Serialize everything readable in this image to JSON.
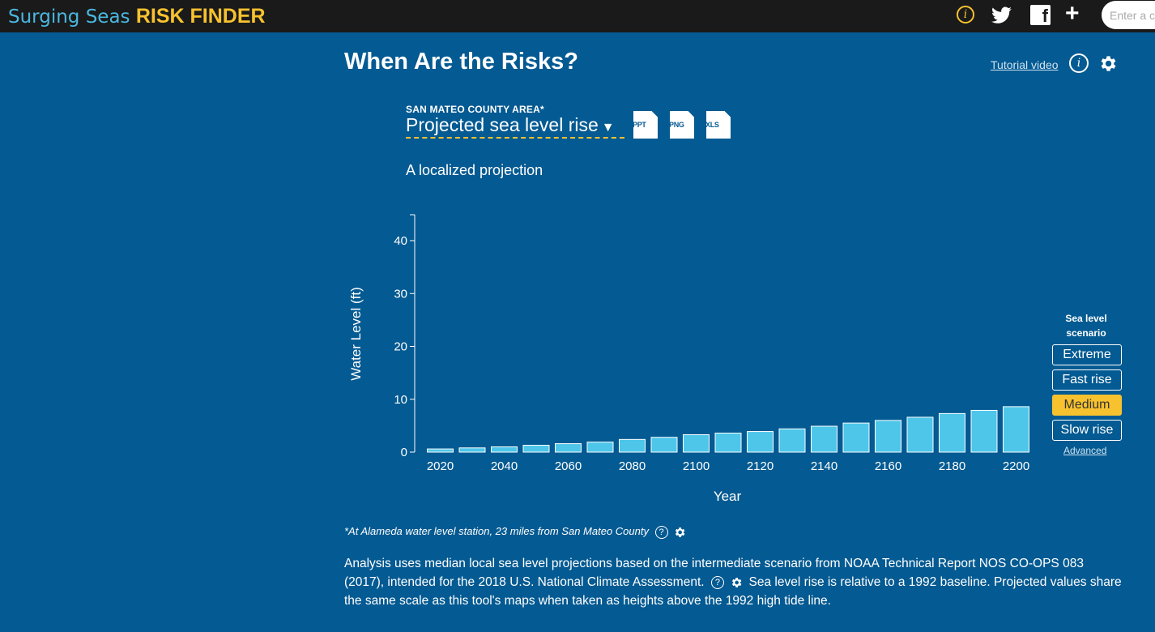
{
  "brand": {
    "name_part1": "Surging Seas",
    "name_part2": "RISK FINDER"
  },
  "topbar": {
    "icons": [
      "info-icon",
      "twitter-icon",
      "facebook-icon",
      "plus-icon"
    ],
    "search_placeholder": "Enter a c"
  },
  "header": {
    "title": "When Are the Risks?",
    "tutorial_label": "Tutorial video",
    "info_glyph": "i"
  },
  "selector": {
    "area_label": "SAN MATEO COUNTY AREA*",
    "metric_label": "Projected sea level rise",
    "downloads": [
      "PPT",
      "PNG",
      "XLS"
    ]
  },
  "subtitle": "A localized projection",
  "chart_data": {
    "type": "bar",
    "x": [
      2020,
      2030,
      2040,
      2050,
      2060,
      2070,
      2080,
      2090,
      2100,
      2110,
      2120,
      2130,
      2140,
      2150,
      2160,
      2170,
      2180,
      2190,
      2200
    ],
    "values": [
      0.6,
      0.8,
      1.0,
      1.3,
      1.6,
      1.9,
      2.4,
      2.8,
      3.3,
      3.6,
      3.9,
      4.4,
      4.9,
      5.5,
      6.0,
      6.6,
      7.3,
      7.9,
      8.6
    ],
    "xticks": [
      "2020",
      "2040",
      "2060",
      "2080",
      "2100",
      "2120",
      "2140",
      "2160",
      "2180",
      "2200"
    ],
    "yticks": [
      "0",
      "10",
      "20",
      "30",
      "40"
    ],
    "ylim": [
      0,
      45
    ],
    "xlabel": "Year",
    "ylabel": "Water Level (ft)",
    "bar_color": "#4ec6ea",
    "grid": false
  },
  "scenario": {
    "title_line1": "Sea level",
    "title_line2": "scenario",
    "options": [
      "Extreme",
      "Fast rise",
      "Medium",
      "Slow rise"
    ],
    "selected": "Medium",
    "advanced_label": "Advanced"
  },
  "footnote": {
    "text": "*At Alameda water level station, 23 miles from San Mateo County",
    "help_glyph": "?"
  },
  "analysis": {
    "part1": "Analysis uses median local sea level projections based on the intermediate scenario from NOAA Technical Report NOS CO-OPS 083 (2017), intended for the 2018 U.S. National Climate Assessment.",
    "part2": "Sea level rise is relative to a 1992 baseline. Projected values share the same scale as this tool's maps when taken as heights above the 1992 high tide line."
  },
  "colors": {
    "background": "#045a92",
    "accent": "#f7c22e",
    "topbar": "#1a1a1a",
    "bar": "#4ec6ea"
  }
}
